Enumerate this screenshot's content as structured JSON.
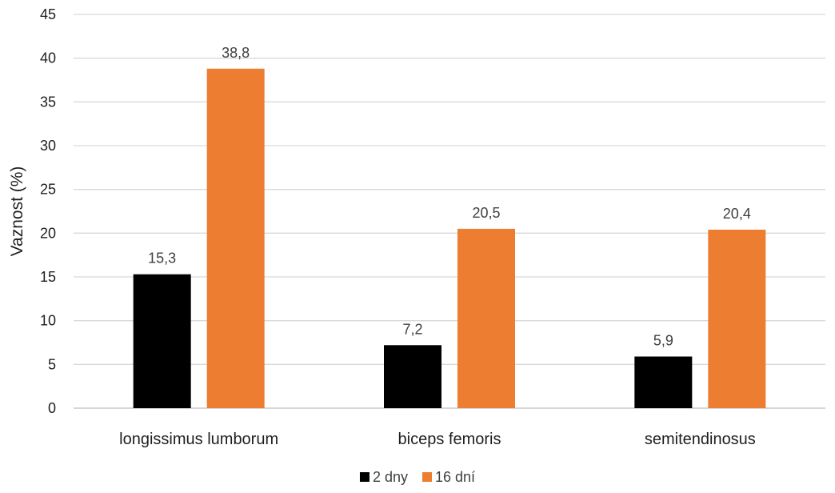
{
  "chart_data": {
    "type": "bar",
    "title": "",
    "xlabel": "",
    "ylabel": "Vaznost (%)",
    "ylim": [
      0,
      45
    ],
    "y_ticks": [
      0,
      5,
      10,
      15,
      20,
      25,
      30,
      35,
      40,
      45
    ],
    "y_tick_labels": [
      "0",
      "5",
      "10",
      "15",
      "20",
      "25",
      "30",
      "35",
      "40",
      "45"
    ],
    "grid": true,
    "legend_position": "bottom",
    "categories": [
      "longissimus lumborum",
      "biceps femoris",
      "semitendinosus"
    ],
    "series": [
      {
        "name": "2 dny",
        "color": "#000000",
        "values": [
          15.3,
          7.2,
          5.9
        ],
        "labels": [
          "15,3",
          "7,2",
          "5,9"
        ]
      },
      {
        "name": "16 dní",
        "color": "#ED7D31",
        "values": [
          38.8,
          20.5,
          20.4
        ],
        "labels": [
          "38,8",
          "20,5",
          "20,4"
        ]
      }
    ],
    "colors": {
      "grid": "#D9D9D9",
      "axis": "#BFBFBF"
    }
  }
}
